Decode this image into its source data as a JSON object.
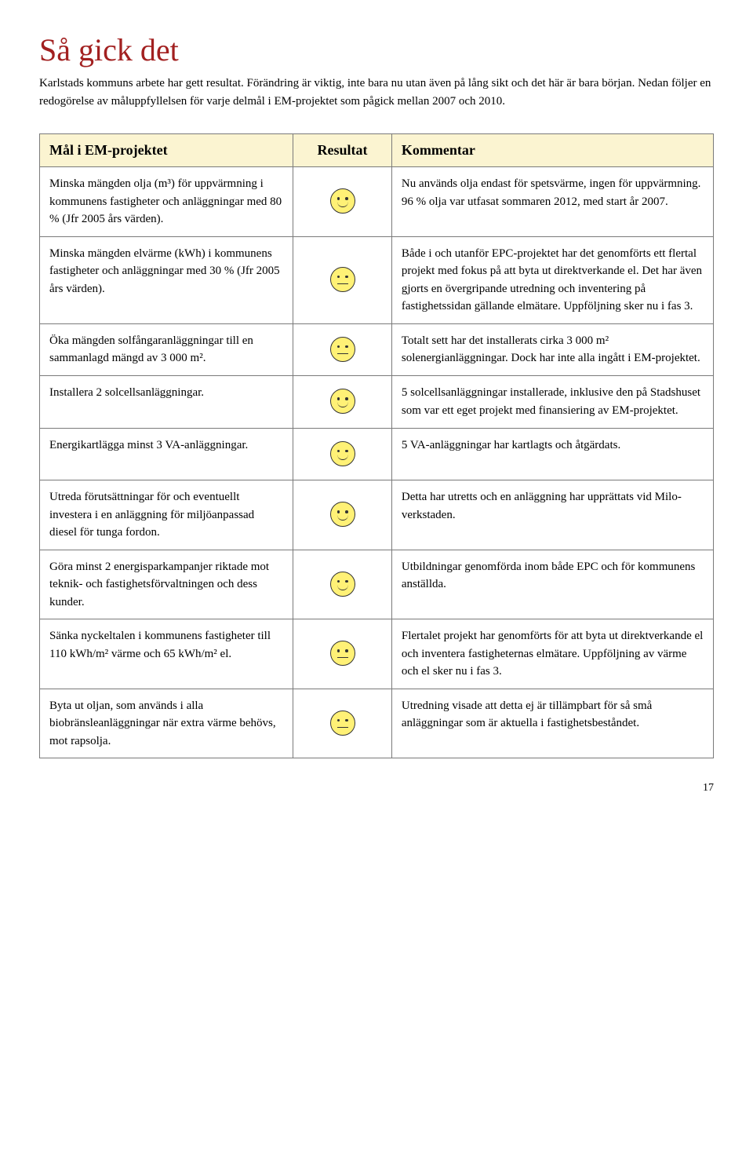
{
  "title": "Så gick det",
  "title_color": "#a22020",
  "intro": "Karlstads kommuns arbete har gett resultat. Förändring är viktig, inte bara nu utan även på lång sikt och det här är bara början.\nNedan följer en redogörelse av måluppfyllelsen för varje delmål i EM-projektet som pågick mellan 2007 och 2010.",
  "table": {
    "header_bg": "#fbf4d1",
    "columns": [
      "Mål i EM-projektet",
      "Resultat",
      "Kommentar"
    ],
    "rows": [
      {
        "goal": "Minska mängden olja (m³) för uppvärmning i kommunens fastigheter och anläggningar med 80 % (Jfr 2005 års värden).",
        "mood": "happy",
        "face_color": "#fff176",
        "comment": "Nu används olja endast för spetsvärme, ingen för uppvärmning. 96 % olja var utfasat sommaren 2012, med start år 2007."
      },
      {
        "goal": "Minska mängden elvärme (kWh) i kommunens fastigheter och anläggningar med 30 % (Jfr 2005 års värden).",
        "mood": "neutral",
        "face_color": "#fff176",
        "comment": "Både i och utanför EPC-projektet har det genomförts ett flertal projekt med fokus på att byta ut direktverkande el. Det har även gjorts en övergripande utredning och inventering på fastighetssidan gällande elmätare. Uppföljning sker nu i fas 3."
      },
      {
        "goal": "Öka mängden solfångaranläggningar till en sammanlagd mängd av 3 000 m².",
        "mood": "neutral",
        "face_color": "#fff176",
        "comment": "Totalt sett har det installerats cirka 3 000 m² solenergianläggningar. Dock har inte alla ingått i EM-projektet."
      },
      {
        "goal": "Installera 2 solcellsanläggningar.",
        "mood": "happy",
        "face_color": "#fff176",
        "comment": "5 solcellsanläggningar installerade, inklusive den på Stadshuset som var ett eget projekt med finansiering av EM-projektet."
      },
      {
        "goal": "Energikartlägga minst 3 VA-anläggningar.",
        "mood": "happy",
        "face_color": "#fff176",
        "comment": "5 VA-anläggningar har kartlagts och åtgärdats."
      },
      {
        "goal": "Utreda förutsättningar för och eventuellt investera i en anläggning för miljöanpassad diesel för tunga fordon.",
        "mood": "happy",
        "face_color": "#fff176",
        "comment": "Detta har utretts och en anläggning har upprättats vid Milo-verkstaden."
      },
      {
        "goal": "Göra minst 2 energisparkampanjer riktade mot teknik- och fastighetsförvaltningen och dess kunder.",
        "mood": "happy",
        "face_color": "#fff176",
        "comment": "Utbildningar genomförda inom både EPC och för kommunens anställda."
      },
      {
        "goal": "Sänka nyckeltalen i kommunens fastigheter till 110 kWh/m² värme och 65 kWh/m² el.",
        "mood": "neutral",
        "face_color": "#fff176",
        "comment": "Flertalet projekt har genomförts för att byta ut direktverkande el och inventera fastigheternas elmätare. Uppföljning av värme och el sker nu i fas 3."
      },
      {
        "goal": "Byta ut oljan, som används i alla biobränsleanläggningar när extra värme behövs, mot rapsolja.",
        "mood": "neutral",
        "face_color": "#fff176",
        "comment": "Utredning visade att detta ej är tillämpbart för så små anläggningar som är aktuella i fastighetsbeståndet."
      }
    ]
  },
  "page_number": "17"
}
